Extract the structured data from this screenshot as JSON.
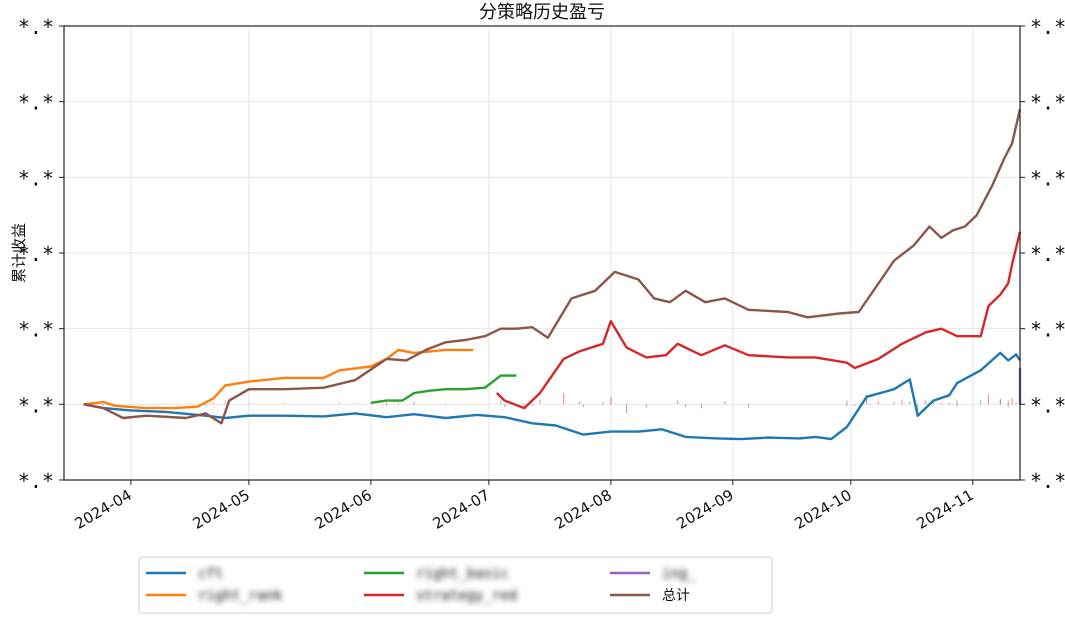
{
  "chart_data": {
    "type": "line",
    "title": "分策略历史盈亏",
    "xlabel": "",
    "ylabel": "累计收益",
    "ytick_labels": [
      "*.*",
      "*.*",
      "*.*",
      "*.*",
      "*.*",
      "*.*",
      "*.*"
    ],
    "y_tick_values": [
      -1,
      0,
      1,
      2,
      3,
      4,
      5
    ],
    "ylim": [
      -1,
      5
    ],
    "xlim": [
      "2024-03-15",
      "2024-11-13"
    ],
    "x_ticks": [
      {
        "date": "2024-04-01",
        "label": "2024-04"
      },
      {
        "date": "2024-05-01",
        "label": "2024-05"
      },
      {
        "date": "2024-06-01",
        "label": "2024-06"
      },
      {
        "date": "2024-07-01",
        "label": "2024-07"
      },
      {
        "date": "2024-08-01",
        "label": "2024-08"
      },
      {
        "date": "2024-09-01",
        "label": "2024-09"
      },
      {
        "date": "2024-10-01",
        "label": "2024-10"
      },
      {
        "date": "2024-11-01",
        "label": "2024-11"
      }
    ],
    "grid": true,
    "legend_position": "bottom-left, below plot",
    "series": [
      {
        "name": "cft",
        "obscured": true,
        "color": "#1f77b4",
        "points": [
          [
            "2024-03-20",
            0.0
          ],
          [
            "2024-03-25",
            -0.05
          ],
          [
            "2024-04-01",
            -0.08
          ],
          [
            "2024-04-10",
            -0.1
          ],
          [
            "2024-04-20",
            -0.15
          ],
          [
            "2024-04-25",
            -0.18
          ],
          [
            "2024-05-01",
            -0.15
          ],
          [
            "2024-05-10",
            -0.15
          ],
          [
            "2024-05-20",
            -0.16
          ],
          [
            "2024-05-28",
            -0.12
          ],
          [
            "2024-06-05",
            -0.17
          ],
          [
            "2024-06-12",
            -0.13
          ],
          [
            "2024-06-20",
            -0.18
          ],
          [
            "2024-06-28",
            -0.14
          ],
          [
            "2024-07-05",
            -0.17
          ],
          [
            "2024-07-12",
            -0.25
          ],
          [
            "2024-07-18",
            -0.28
          ],
          [
            "2024-07-25",
            -0.4
          ],
          [
            "2024-08-01",
            -0.36
          ],
          [
            "2024-08-08",
            -0.36
          ],
          [
            "2024-08-14",
            -0.33
          ],
          [
            "2024-08-20",
            -0.43
          ],
          [
            "2024-08-28",
            -0.45
          ],
          [
            "2024-09-03",
            -0.46
          ],
          [
            "2024-09-10",
            -0.44
          ],
          [
            "2024-09-18",
            -0.45
          ],
          [
            "2024-09-22",
            -0.43
          ],
          [
            "2024-09-26",
            -0.46
          ],
          [
            "2024-09-30",
            -0.3
          ],
          [
            "2024-10-05",
            0.1
          ],
          [
            "2024-10-12",
            0.2
          ],
          [
            "2024-10-16",
            0.33
          ],
          [
            "2024-10-18",
            -0.15
          ],
          [
            "2024-10-22",
            0.05
          ],
          [
            "2024-10-26",
            0.12
          ],
          [
            "2024-10-28",
            0.28
          ],
          [
            "2024-11-03",
            0.45
          ],
          [
            "2024-11-08",
            0.68
          ],
          [
            "2024-11-10",
            0.58
          ],
          [
            "2024-11-12",
            0.66
          ],
          [
            "2024-11-13",
            0.58
          ]
        ]
      },
      {
        "name": "right_rank",
        "obscured": true,
        "color": "#ff7f0e",
        "points": [
          [
            "2024-03-20",
            0.0
          ],
          [
            "2024-03-25",
            0.03
          ],
          [
            "2024-03-28",
            -0.02
          ],
          [
            "2024-04-05",
            -0.05
          ],
          [
            "2024-04-12",
            -0.05
          ],
          [
            "2024-04-18",
            -0.03
          ],
          [
            "2024-04-22",
            0.08
          ],
          [
            "2024-04-25",
            0.25
          ],
          [
            "2024-05-01",
            0.3
          ],
          [
            "2024-05-10",
            0.35
          ],
          [
            "2024-05-20",
            0.35
          ],
          [
            "2024-05-24",
            0.45
          ],
          [
            "2024-06-01",
            0.5
          ],
          [
            "2024-06-05",
            0.6
          ],
          [
            "2024-06-08",
            0.72
          ],
          [
            "2024-06-12",
            0.68
          ],
          [
            "2024-06-16",
            0.7
          ],
          [
            "2024-06-20",
            0.72
          ],
          [
            "2024-06-24",
            0.72
          ],
          [
            "2024-06-27",
            0.72
          ]
        ]
      },
      {
        "name": "right_basic",
        "obscured": true,
        "color": "#2ca02c",
        "points": [
          [
            "2024-06-01",
            0.02
          ],
          [
            "2024-06-05",
            0.05
          ],
          [
            "2024-06-09",
            0.05
          ],
          [
            "2024-06-12",
            0.15
          ],
          [
            "2024-06-16",
            0.18
          ],
          [
            "2024-06-20",
            0.2
          ],
          [
            "2024-06-25",
            0.2
          ],
          [
            "2024-06-30",
            0.22
          ],
          [
            "2024-07-04",
            0.38
          ],
          [
            "2024-07-08",
            0.38
          ]
        ]
      },
      {
        "name": "strategy_red",
        "obscured": true,
        "color": "#d62728",
        "points": [
          [
            "2024-07-03",
            0.15
          ],
          [
            "2024-07-05",
            0.05
          ],
          [
            "2024-07-10",
            -0.05
          ],
          [
            "2024-07-14",
            0.15
          ],
          [
            "2024-07-20",
            0.6
          ],
          [
            "2024-07-24",
            0.7
          ],
          [
            "2024-07-30",
            0.8
          ],
          [
            "2024-08-01",
            1.1
          ],
          [
            "2024-08-05",
            0.75
          ],
          [
            "2024-08-10",
            0.62
          ],
          [
            "2024-08-15",
            0.65
          ],
          [
            "2024-08-18",
            0.8
          ],
          [
            "2024-08-24",
            0.65
          ],
          [
            "2024-08-30",
            0.78
          ],
          [
            "2024-09-05",
            0.65
          ],
          [
            "2024-09-15",
            0.62
          ],
          [
            "2024-09-22",
            0.62
          ],
          [
            "2024-09-30",
            0.55
          ],
          [
            "2024-10-02",
            0.48
          ],
          [
            "2024-10-08",
            0.6
          ],
          [
            "2024-10-14",
            0.8
          ],
          [
            "2024-10-20",
            0.95
          ],
          [
            "2024-10-24",
            1.0
          ],
          [
            "2024-10-28",
            0.9
          ],
          [
            "2024-11-03",
            0.9
          ],
          [
            "2024-11-05",
            1.3
          ],
          [
            "2024-11-08",
            1.45
          ],
          [
            "2024-11-10",
            1.6
          ],
          [
            "2024-11-11",
            1.85
          ],
          [
            "2024-11-13",
            2.28
          ]
        ]
      },
      {
        "name": "ing_",
        "obscured": true,
        "color": "#9467bd",
        "points": [
          [
            "2024-11-13",
            0.0
          ],
          [
            "2024-11-13",
            0.48
          ]
        ]
      },
      {
        "name": "总计",
        "obscured": false,
        "color": "#8c564b",
        "points": [
          [
            "2024-03-20",
            0.0
          ],
          [
            "2024-03-25",
            -0.05
          ],
          [
            "2024-03-30",
            -0.18
          ],
          [
            "2024-04-05",
            -0.15
          ],
          [
            "2024-04-15",
            -0.18
          ],
          [
            "2024-04-20",
            -0.12
          ],
          [
            "2024-04-24",
            -0.25
          ],
          [
            "2024-04-26",
            0.05
          ],
          [
            "2024-05-01",
            0.2
          ],
          [
            "2024-05-10",
            0.2
          ],
          [
            "2024-05-20",
            0.22
          ],
          [
            "2024-05-28",
            0.32
          ],
          [
            "2024-06-05",
            0.6
          ],
          [
            "2024-06-10",
            0.58
          ],
          [
            "2024-06-15",
            0.72
          ],
          [
            "2024-06-20",
            0.82
          ],
          [
            "2024-06-25",
            0.85
          ],
          [
            "2024-06-30",
            0.9
          ],
          [
            "2024-07-04",
            1.0
          ],
          [
            "2024-07-08",
            1.0
          ],
          [
            "2024-07-12",
            1.02
          ],
          [
            "2024-07-16",
            0.88
          ],
          [
            "2024-07-22",
            1.4
          ],
          [
            "2024-07-28",
            1.5
          ],
          [
            "2024-08-02",
            1.75
          ],
          [
            "2024-08-08",
            1.65
          ],
          [
            "2024-08-12",
            1.4
          ],
          [
            "2024-08-16",
            1.35
          ],
          [
            "2024-08-20",
            1.5
          ],
          [
            "2024-08-25",
            1.35
          ],
          [
            "2024-08-30",
            1.4
          ],
          [
            "2024-09-05",
            1.25
          ],
          [
            "2024-09-15",
            1.22
          ],
          [
            "2024-09-20",
            1.15
          ],
          [
            "2024-09-28",
            1.2
          ],
          [
            "2024-10-03",
            1.22
          ],
          [
            "2024-10-07",
            1.52
          ],
          [
            "2024-10-12",
            1.9
          ],
          [
            "2024-10-17",
            2.1
          ],
          [
            "2024-10-21",
            2.35
          ],
          [
            "2024-10-24",
            2.2
          ],
          [
            "2024-10-27",
            2.3
          ],
          [
            "2024-10-30",
            2.35
          ],
          [
            "2024-11-02",
            2.5
          ],
          [
            "2024-11-06",
            2.9
          ],
          [
            "2024-11-09",
            3.25
          ],
          [
            "2024-11-11",
            3.45
          ],
          [
            "2024-11-13",
            3.9
          ]
        ]
      }
    ]
  }
}
